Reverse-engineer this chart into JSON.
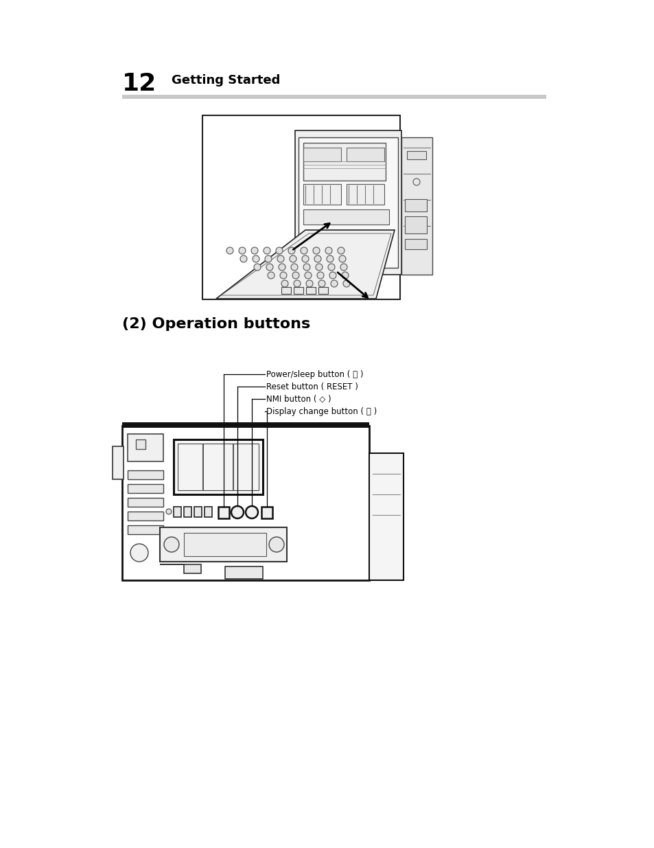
{
  "bg_color": "#ffffff",
  "page_number": "12",
  "header_text": "Getting Started",
  "section_title": "(2) Operation buttons",
  "label1": "Power/sleep button ( ⏻ )",
  "label2": "Reset button ( RESET )",
  "label3": "NMI button ( ◇ )",
  "label4": "Display change button ( ⎙ )",
  "figsize": [
    9.54,
    12.35
  ],
  "dpi": 100
}
